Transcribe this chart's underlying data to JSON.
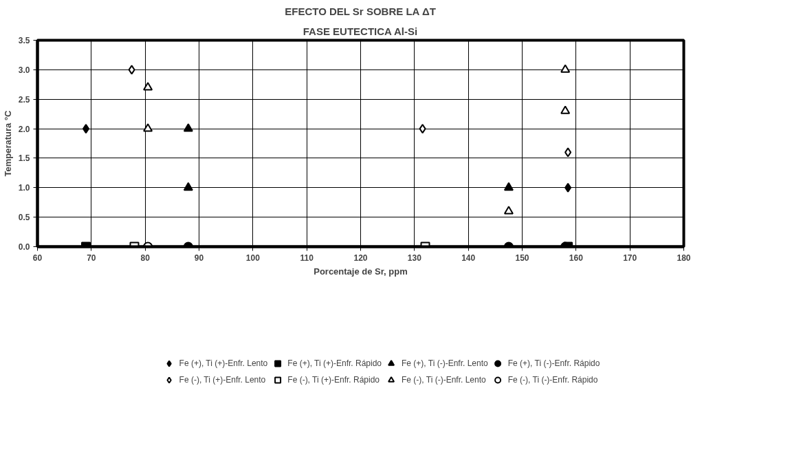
{
  "chart_data": {
    "type": "scatter",
    "title": "EFECTO DEL Sr SOBRE LA ΔT",
    "subtitle": "FASE EUTECTICA Al-Si",
    "xlabel": "Porcentaje de Sr, ppm",
    "ylabel": "Temperatura °C",
    "xlim": [
      60,
      180
    ],
    "xticks": [
      60,
      70,
      80,
      90,
      100,
      110,
      120,
      130,
      140,
      150,
      160,
      170,
      180
    ],
    "ylim": [
      0,
      3.5
    ],
    "yticks": [
      {
        "value": 0,
        "label": "0.0"
      },
      0.5,
      {
        "value": 1,
        "label": "1.0"
      },
      1.5,
      {
        "value": 2,
        "label": "2.0"
      },
      2.5,
      {
        "value": 3,
        "label": "3.0"
      },
      3.5
    ],
    "grid": true,
    "legend": "bottom",
    "series": [
      {
        "name": "Fe (+), Ti (+)-Enfr. Lento",
        "color": "#000000",
        "marker": "diamond",
        "x": [
          69,
          158.5
        ],
        "values": [
          2,
          1
        ]
      },
      {
        "name": "Fe (+), Ti (+)-Enfr. Rápido",
        "color": "#000000",
        "marker": "square",
        "x": [
          69,
          158.5
        ],
        "values": [
          0,
          0
        ]
      },
      {
        "name": "Fe (+), Ti (-)-Enfr. Lento",
        "color": "#000000",
        "marker": "triangle",
        "x": [
          88,
          88,
          147.5
        ],
        "values": [
          2,
          1,
          1
        ]
      },
      {
        "name": "Fe (+), Ti (-)-Enfr. Rápido",
        "color": "#000000",
        "marker": "circle",
        "x": [
          88,
          147.5,
          158
        ],
        "values": [
          0,
          0,
          0
        ]
      },
      {
        "name": "Fe (-), Ti (+)-Enfr. Lento",
        "color": "#ffffff",
        "marker": "diamond",
        "x": [
          77.5,
          131.5,
          158.5
        ],
        "values": [
          3,
          2,
          1.6
        ]
      },
      {
        "name": "Fe (-), Ti (+)-Enfr. Rápido",
        "color": "#ffffff",
        "marker": "square",
        "x": [
          78,
          132
        ],
        "values": [
          0,
          0
        ]
      },
      {
        "name": "Fe (-), Ti (-)-Enfr. Lento",
        "color": "#ffffff",
        "marker": "triangle",
        "x": [
          80.5,
          80.5,
          147.5,
          158,
          158
        ],
        "values": [
          2.7,
          2,
          0.6,
          3,
          2.3
        ]
      },
      {
        "name": "Fe (-), Ti (-)-Enfr. Rápido",
        "color": "#ffffff",
        "marker": "circle",
        "x": [
          80.5
        ],
        "values": [
          0
        ]
      }
    ]
  }
}
